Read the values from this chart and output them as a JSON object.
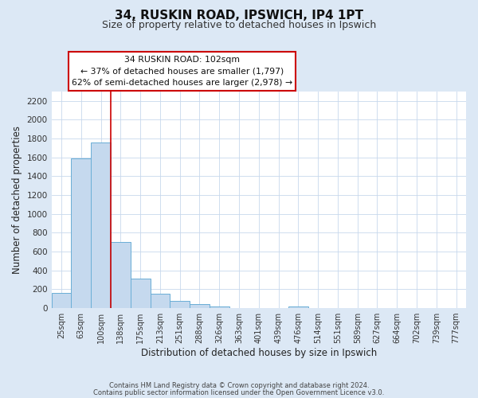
{
  "title_line1": "34, RUSKIN ROAD, IPSWICH, IP4 1PT",
  "title_line2": "Size of property relative to detached houses in Ipswich",
  "xlabel": "Distribution of detached houses by size in Ipswich",
  "ylabel": "Number of detached properties",
  "bin_labels": [
    "25sqm",
    "63sqm",
    "100sqm",
    "138sqm",
    "175sqm",
    "213sqm",
    "251sqm",
    "288sqm",
    "326sqm",
    "363sqm",
    "401sqm",
    "439sqm",
    "476sqm",
    "514sqm",
    "551sqm",
    "589sqm",
    "627sqm",
    "664sqm",
    "702sqm",
    "739sqm",
    "777sqm"
  ],
  "bar_values": [
    160,
    1590,
    1755,
    700,
    310,
    155,
    80,
    45,
    20,
    0,
    0,
    0,
    15,
    0,
    0,
    0,
    0,
    0,
    0,
    0,
    0
  ],
  "bar_color": "#c5d9ee",
  "bar_edge_color": "#6aaed6",
  "vline_x_index": 2,
  "vline_color": "#cc0000",
  "annotation_line1": "34 RUSKIN ROAD: 102sqm",
  "annotation_line2": "← 37% of detached houses are smaller (1,797)",
  "annotation_line3": "62% of semi-detached houses are larger (2,978) →",
  "box_edge_color": "#cc0000",
  "ylim": [
    0,
    2300
  ],
  "yticks": [
    0,
    200,
    400,
    600,
    800,
    1000,
    1200,
    1400,
    1600,
    1800,
    2000,
    2200
  ],
  "footer_line1": "Contains HM Land Registry data © Crown copyright and database right 2024.",
  "footer_line2": "Contains public sector information licensed under the Open Government Licence v3.0.",
  "bg_color": "#dce8f5",
  "plot_bg_color": "#ffffff",
  "title1_fontsize": 11,
  "title2_fontsize": 9,
  "tick_fontsize": 7,
  "label_fontsize": 8.5
}
